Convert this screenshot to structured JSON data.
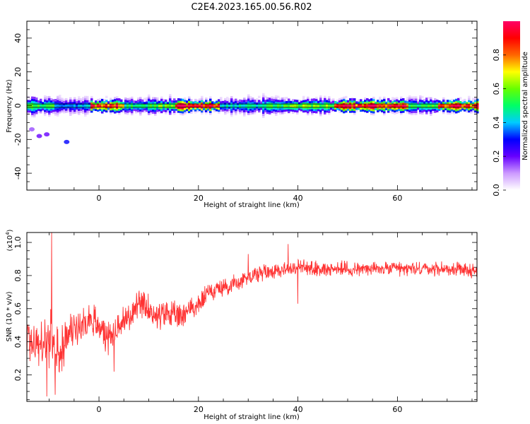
{
  "title": "C2E4.2023.165.00.56.R02",
  "chart_data": [
    {
      "type": "heatmap",
      "xlabel": "Height of straight line (km)",
      "ylabel": "Frequency (Hz)",
      "xlim": [
        -14.5,
        76
      ],
      "ylim": [
        -50,
        50
      ],
      "xticks": [
        0,
        20,
        40,
        60
      ],
      "yticks": [
        -40,
        -20,
        0,
        20,
        40
      ],
      "grid": false,
      "colorbar": {
        "label": "Normalized spectral amplitude",
        "range": [
          0,
          1
        ],
        "ticks": [
          "0.0",
          "0.2",
          "0.4",
          "0.6",
          "0.8"
        ],
        "colors": [
          "#ffffff",
          "#cc99ff",
          "#6600ff",
          "#0000ff",
          "#00ccff",
          "#00ff66",
          "#66ff00",
          "#ffff00",
          "#ff6600",
          "#ff0000",
          "#ff0066"
        ]
      },
      "reference_lines_hz": [
        1,
        -1
      ],
      "band_segments": [
        {
          "x": [
            -14.5,
            -9
          ],
          "strength": 0.55
        },
        {
          "x": [
            -9,
            -2
          ],
          "strength": 0.4
        },
        {
          "x": [
            -2,
            5
          ],
          "strength": 0.9
        },
        {
          "x": [
            5,
            10
          ],
          "strength": 0.5
        },
        {
          "x": [
            10,
            15
          ],
          "strength": 0.6
        },
        {
          "x": [
            15,
            24
          ],
          "strength": 0.95
        },
        {
          "x": [
            24,
            33
          ],
          "strength": 0.45
        },
        {
          "x": [
            33,
            37
          ],
          "strength": 0.55
        },
        {
          "x": [
            37,
            47
          ],
          "strength": 0.6
        },
        {
          "x": [
            47,
            62
          ],
          "strength": 0.95
        },
        {
          "x": [
            62,
            68
          ],
          "strength": 0.55
        },
        {
          "x": [
            68,
            76
          ],
          "strength": 0.9
        }
      ],
      "scatter_spots": [
        {
          "x": -13.5,
          "y": -14,
          "strength": 0.15
        },
        {
          "x": -12,
          "y": -18,
          "strength": 0.2
        },
        {
          "x": -10.5,
          "y": -17,
          "strength": 0.2
        },
        {
          "x": -6.5,
          "y": -21.5,
          "strength": 0.3
        }
      ]
    },
    {
      "type": "line",
      "xlabel": "Height of straight line (km)",
      "ylabel": "SNR (10 * v/v)",
      "scale_label": "(x10",
      "scale_exponent": "4",
      "xlim": [
        -14.5,
        76
      ],
      "ylim": [
        0.04,
        1.06
      ],
      "xticks": [
        0,
        20,
        40,
        60
      ],
      "yticks": [
        "0.2",
        "0.4",
        "0.6",
        "0.8",
        "1.0"
      ],
      "grid": false,
      "series_color": "#ff0000",
      "trend": {
        "x": [
          -14.5,
          -12,
          -10,
          -8,
          -6,
          -4,
          -2,
          0,
          2,
          4,
          6,
          8,
          10,
          12,
          14,
          16,
          18,
          20,
          22,
          24,
          26,
          28,
          30,
          35,
          40,
          45,
          50,
          55,
          60,
          65,
          70,
          76
        ],
        "y": [
          0.42,
          0.38,
          0.4,
          0.32,
          0.45,
          0.5,
          0.55,
          0.5,
          0.42,
          0.5,
          0.55,
          0.62,
          0.6,
          0.55,
          0.58,
          0.55,
          0.6,
          0.62,
          0.7,
          0.72,
          0.74,
          0.76,
          0.8,
          0.83,
          0.85,
          0.84,
          0.84,
          0.84,
          0.84,
          0.84,
          0.84,
          0.83
        ]
      },
      "noise": {
        "x": [
          -14.5,
          -10,
          -5,
          0,
          10,
          20,
          25,
          40,
          60,
          76
        ],
        "amplitude": [
          0.2,
          0.22,
          0.12,
          0.12,
          0.1,
          0.08,
          0.06,
          0.06,
          0.05,
          0.05
        ]
      },
      "spikes": [
        {
          "x": -9.5,
          "y": 1.06
        },
        {
          "x": -8.8,
          "y": 0.08
        },
        {
          "x": -10.5,
          "y": 0.07
        },
        {
          "x": 3,
          "y": 0.22
        },
        {
          "x": 30,
          "y": 0.93
        },
        {
          "x": 38,
          "y": 0.99
        },
        {
          "x": 40,
          "y": 0.63
        }
      ],
      "samples": 1400
    }
  ]
}
